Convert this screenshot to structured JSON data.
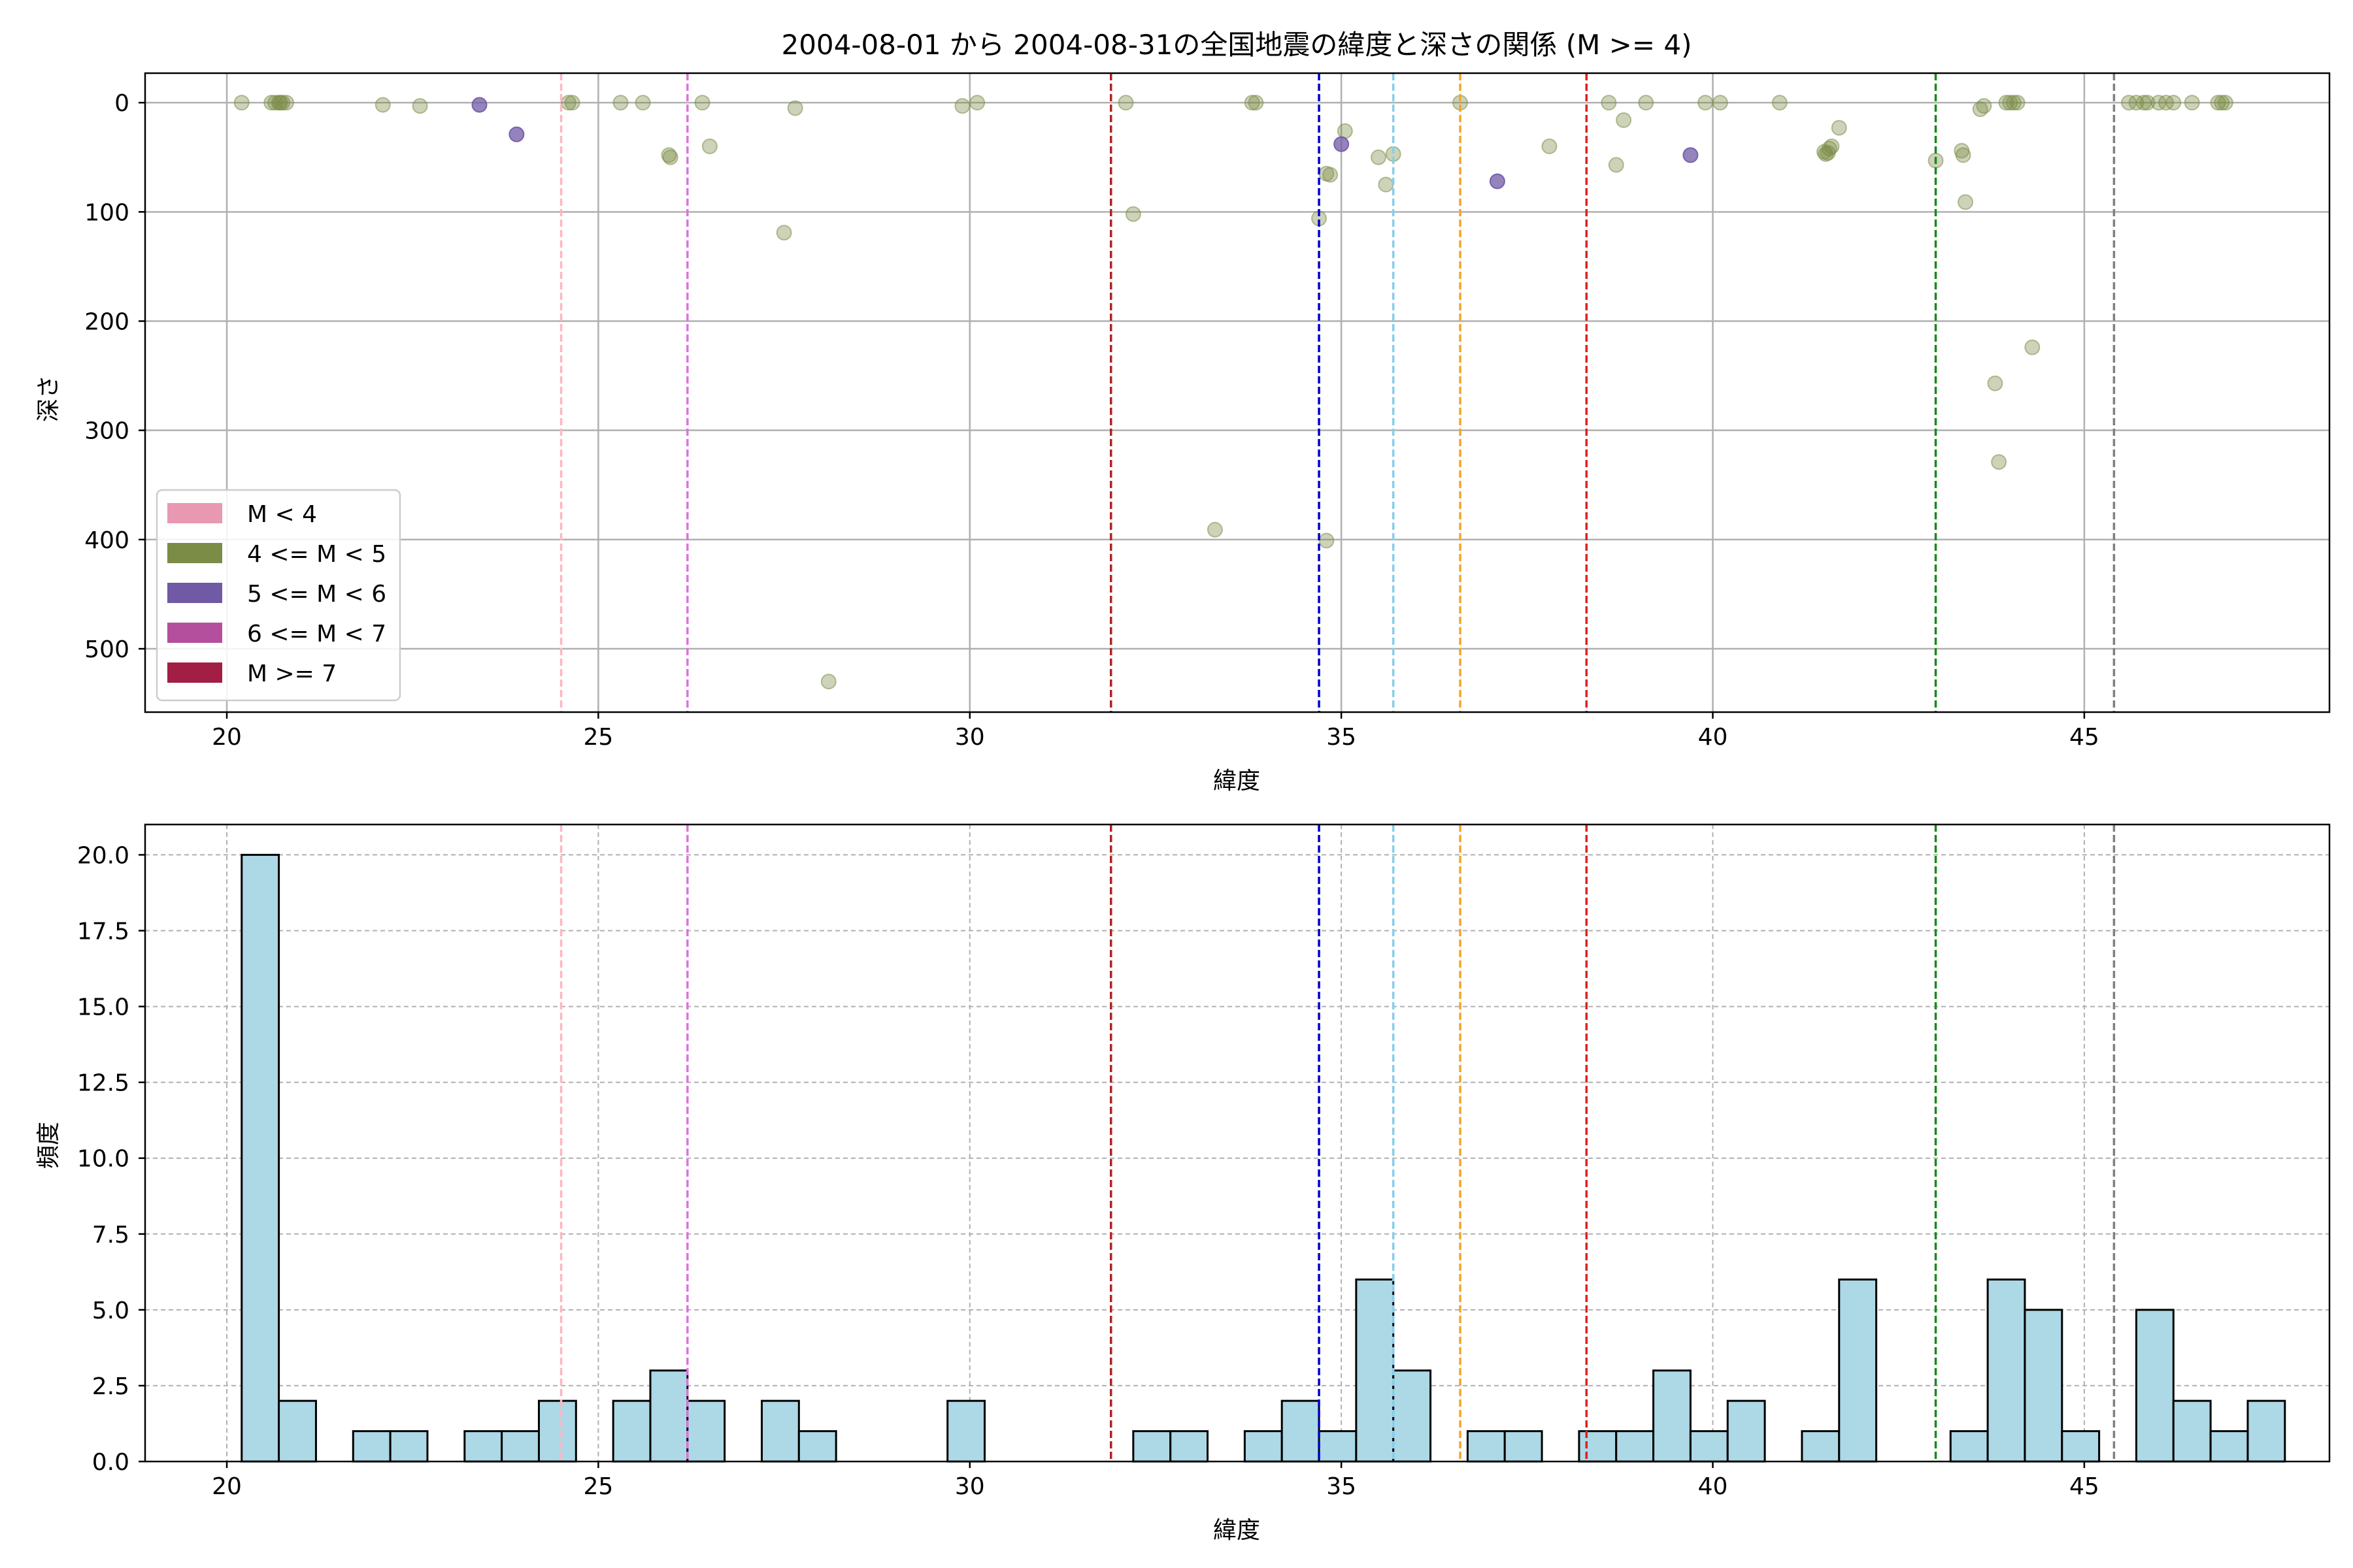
{
  "chart_data": [
    {
      "type": "scatter",
      "title": "2004-08-01 から 2004-08-31の全国地震の緯度と深さの関係 (M >= 4)",
      "xlabel": "緯度",
      "ylabel": "深さ",
      "xlim": [
        18.9,
        48.3
      ],
      "ylim": [
        558,
        -27
      ],
      "y_inverted": true,
      "xticks": [
        20,
        25,
        30,
        35,
        40,
        45
      ],
      "yticks": [
        0,
        100,
        200,
        300,
        400,
        500
      ],
      "grid": true,
      "legend_position": "lower-left",
      "legend": [
        {
          "label": "M < 4",
          "color": "#e899b1"
        },
        {
          "label": "4 <= M < 5",
          "color": "#7b8c46"
        },
        {
          "label": "5 <= M < 6",
          "color": "#7059a5"
        },
        {
          "label": "6 <= M < 7",
          "color": "#b44f9d"
        },
        {
          "label": "M >= 7",
          "color": "#a21e45"
        }
      ],
      "series": [
        {
          "magnitude_class": "4 <= M < 5",
          "color": "#7b8c46",
          "opacity": 0.38,
          "points": [
            [
              20.2,
              0
            ],
            [
              20.6,
              0
            ],
            [
              20.65,
              0
            ],
            [
              20.7,
              0
            ],
            [
              20.72,
              0
            ],
            [
              20.75,
              0
            ],
            [
              20.8,
              0
            ],
            [
              22.1,
              2
            ],
            [
              22.6,
              3
            ],
            [
              24.6,
              0
            ],
            [
              24.65,
              0
            ],
            [
              25.3,
              0
            ],
            [
              25.6,
              0
            ],
            [
              25.95,
              48
            ],
            [
              25.97,
              50
            ],
            [
              26.4,
              0
            ],
            [
              26.5,
              40
            ],
            [
              27.5,
              119
            ],
            [
              27.65,
              5
            ],
            [
              28.1,
              530
            ],
            [
              29.9,
              3
            ],
            [
              30.1,
              0
            ],
            [
              32.1,
              0
            ],
            [
              32.2,
              102
            ],
            [
              33.3,
              391
            ],
            [
              33.8,
              0
            ],
            [
              33.85,
              0
            ],
            [
              34.7,
              106
            ],
            [
              34.8,
              401
            ],
            [
              34.8,
              65
            ],
            [
              34.85,
              66
            ],
            [
              35.05,
              26
            ],
            [
              35.5,
              50
            ],
            [
              35.6,
              75
            ],
            [
              35.7,
              47
            ],
            [
              36.6,
              0
            ],
            [
              37.8,
              40
            ],
            [
              38.6,
              0
            ],
            [
              38.7,
              57
            ],
            [
              38.8,
              16
            ],
            [
              39.1,
              0
            ],
            [
              39.9,
              0
            ],
            [
              40.1,
              0
            ],
            [
              40.9,
              0
            ],
            [
              41.5,
              45
            ],
            [
              41.52,
              47
            ],
            [
              41.55,
              46
            ],
            [
              41.57,
              42
            ],
            [
              41.6,
              40
            ],
            [
              41.7,
              23
            ],
            [
              43.0,
              53
            ],
            [
              43.35,
              44
            ],
            [
              43.37,
              48
            ],
            [
              43.4,
              91
            ],
            [
              43.6,
              6
            ],
            [
              43.65,
              3
            ],
            [
              43.8,
              257
            ],
            [
              43.85,
              329
            ],
            [
              43.95,
              0
            ],
            [
              44.0,
              0
            ],
            [
              44.05,
              0
            ],
            [
              44.1,
              0
            ],
            [
              44.3,
              224
            ],
            [
              45.6,
              0
            ],
            [
              45.7,
              0
            ],
            [
              45.8,
              0
            ],
            [
              45.85,
              0
            ],
            [
              46.0,
              0
            ],
            [
              46.1,
              0
            ],
            [
              46.2,
              0
            ],
            [
              46.45,
              0
            ],
            [
              46.8,
              0
            ],
            [
              46.85,
              0
            ],
            [
              46.9,
              0
            ]
          ]
        },
        {
          "magnitude_class": "5 <= M < 6",
          "color": "#7059a5",
          "opacity": 0.75,
          "points": [
            [
              23.4,
              2
            ],
            [
              23.9,
              29
            ],
            [
              35.0,
              38
            ],
            [
              37.1,
              72
            ],
            [
              39.7,
              48
            ]
          ]
        }
      ],
      "vlines": [
        {
          "x": 24.5,
          "color": "#ffb6c1"
        },
        {
          "x": 26.2,
          "color": "#e070e0"
        },
        {
          "x": 31.9,
          "color": "#b22222"
        },
        {
          "x": 34.7,
          "color": "#0000d0"
        },
        {
          "x": 35.7,
          "color": "#87ceeb"
        },
        {
          "x": 36.6,
          "color": "#f5a623"
        },
        {
          "x": 38.3,
          "color": "#e02020"
        },
        {
          "x": 43.0,
          "color": "#1a8a1a"
        },
        {
          "x": 45.4,
          "color": "#808080"
        }
      ]
    },
    {
      "type": "bar",
      "title": "",
      "xlabel": "緯度",
      "ylabel": "頻度",
      "xlim": [
        18.9,
        48.3
      ],
      "ylim": [
        0,
        21
      ],
      "xticks": [
        20,
        25,
        30,
        35,
        40,
        45
      ],
      "yticks": [
        0.0,
        2.5,
        5.0,
        7.5,
        10.0,
        12.5,
        15.0,
        17.5,
        20.0
      ],
      "grid": true,
      "bar_color": "#add8e6",
      "bar_edge_color": "#000000",
      "bin_start": 20.2,
      "bin_width": 0.5,
      "counts": [
        20,
        2,
        0,
        1,
        1,
        0,
        1,
        1,
        2,
        0,
        2,
        3,
        2,
        0,
        2,
        1,
        0,
        0,
        0,
        2,
        0,
        0,
        0,
        0,
        1,
        1,
        0,
        1,
        2,
        1,
        6,
        3,
        0,
        1,
        1,
        0,
        1,
        1,
        3,
        1,
        2,
        0,
        1,
        6,
        0,
        0,
        1,
        6,
        5,
        1,
        0,
        5,
        2,
        1,
        2
      ],
      "vlines": [
        {
          "x": 24.5,
          "color": "#ffb6c1"
        },
        {
          "x": 26.2,
          "color": "#e070e0"
        },
        {
          "x": 31.9,
          "color": "#b22222"
        },
        {
          "x": 34.7,
          "color": "#0000d0"
        },
        {
          "x": 35.7,
          "color": "#87ceeb"
        },
        {
          "x": 36.6,
          "color": "#f5a623"
        },
        {
          "x": 38.3,
          "color": "#e02020"
        },
        {
          "x": 43.0,
          "color": "#1a8a1a"
        },
        {
          "x": 45.4,
          "color": "#808080"
        }
      ]
    }
  ]
}
